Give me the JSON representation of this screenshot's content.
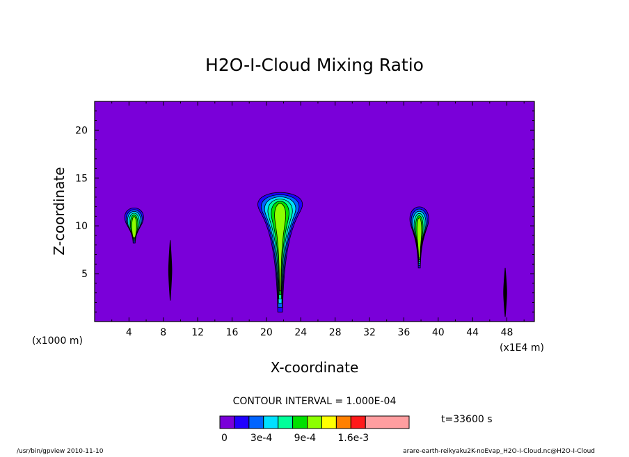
{
  "chart_data": {
    "type": "heatmap",
    "title": "H2O-I-Cloud Mixing Ratio",
    "xlabel": "X-coordinate",
    "ylabel": "Z-coordinate",
    "x_unit_left": "(x1000 m)",
    "x_unit_right": "(x1E4 m)",
    "xlim": [
      0,
      51.2
    ],
    "ylim": [
      0,
      23
    ],
    "xticks": [
      4,
      8,
      12,
      16,
      20,
      24,
      28,
      32,
      36,
      40,
      44,
      48
    ],
    "yticks": [
      5,
      10,
      15,
      20
    ],
    "grid": false,
    "background_color": "#7a00d9",
    "contour_interval": "CONTOUR INTERVAL = 1.000E-04",
    "time_label": "t=33600 s",
    "colorbar": {
      "colors": [
        "#7a00d9",
        "#2000ff",
        "#0064ff",
        "#00e0ff",
        "#00ff9a",
        "#00e000",
        "#8cff00",
        "#ffff00",
        "#ff8000",
        "#ff1a1a",
        "#ff9ea0"
      ],
      "labels": [
        "0",
        "3e-4",
        "9e-4",
        "1.6e-3"
      ],
      "label_positions": [
        0,
        2,
        5,
        8
      ]
    },
    "clouds": [
      {
        "x": 4.6,
        "z_base": 8.2,
        "z_top": 12.2,
        "half_width": 1.1
      },
      {
        "x": 21.6,
        "z_base": 1.0,
        "z_top": 13.9,
        "half_width": 2.6
      },
      {
        "x": 37.8,
        "z_base": 5.6,
        "z_top": 12.4,
        "half_width": 1.1
      }
    ],
    "streaks": [
      {
        "x": 8.8,
        "z_base": 2.2,
        "z_top": 8.5
      },
      {
        "x": 47.8,
        "z_base": 0.5,
        "z_top": 5.6
      }
    ]
  },
  "footer": {
    "left": "/usr/bin/gpview  2010-11-10",
    "right": "arare-earth-reikyaku2K-noEvap_H2O-I-Cloud.nc@H2O-I-Cloud"
  }
}
